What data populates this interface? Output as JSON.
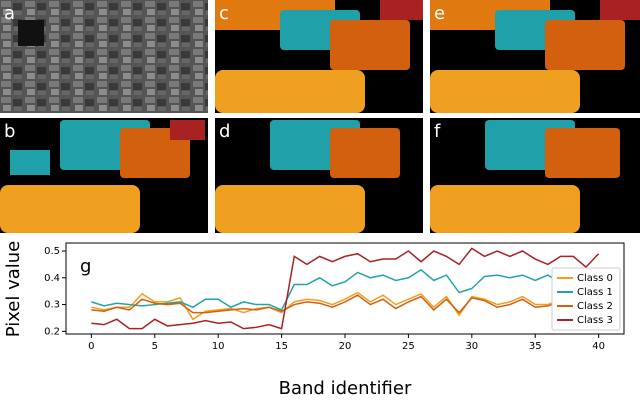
{
  "panels": [
    "a",
    "b",
    "c",
    "d",
    "e",
    "f"
  ],
  "chart_data": {
    "type": "line",
    "panel_label": "g",
    "xlabel": "Band identifier",
    "ylabel": "Pixel value",
    "x": [
      0,
      1,
      2,
      3,
      4,
      5,
      6,
      7,
      8,
      9,
      10,
      11,
      12,
      13,
      14,
      15,
      16,
      17,
      18,
      19,
      20,
      21,
      22,
      23,
      24,
      25,
      26,
      27,
      28,
      29,
      30,
      31,
      32,
      33,
      34,
      35,
      36,
      37,
      38,
      39,
      40
    ],
    "xlim": [
      -2,
      42
    ],
    "xticks": [
      0,
      5,
      10,
      15,
      20,
      25,
      30,
      35,
      40
    ],
    "ylim": [
      0.19,
      0.53
    ],
    "yticks": [
      0.2,
      0.3,
      0.4,
      0.5
    ],
    "legend": "lower right",
    "series": [
      {
        "name": "Class 0",
        "color": "#f0a020",
        "values": [
          0.29,
          0.28,
          0.29,
          0.29,
          0.34,
          0.31,
          0.31,
          0.325,
          0.245,
          0.275,
          0.28,
          0.285,
          0.27,
          0.285,
          0.29,
          0.27,
          0.31,
          0.32,
          0.315,
          0.3,
          0.32,
          0.345,
          0.31,
          0.335,
          0.3,
          0.32,
          0.34,
          0.29,
          0.33,
          0.26,
          0.33,
          0.32,
          0.3,
          0.31,
          0.33,
          0.3,
          0.3,
          0.32,
          0.31,
          0.3,
          0.32
        ]
      },
      {
        "name": "Class 1",
        "color": "#22a3a8",
        "values": [
          0.31,
          0.295,
          0.305,
          0.3,
          0.295,
          0.3,
          0.305,
          0.31,
          0.29,
          0.32,
          0.32,
          0.29,
          0.31,
          0.3,
          0.3,
          0.28,
          0.375,
          0.375,
          0.4,
          0.37,
          0.385,
          0.42,
          0.4,
          0.41,
          0.39,
          0.4,
          0.43,
          0.39,
          0.41,
          0.345,
          0.36,
          0.405,
          0.41,
          0.4,
          0.41,
          0.39,
          0.41,
          0.38,
          0.39,
          0.38,
          0.37
        ]
      },
      {
        "name": "Class 2",
        "color": "#d2600e",
        "values": [
          0.28,
          0.275,
          0.29,
          0.28,
          0.32,
          0.305,
          0.3,
          0.305,
          0.27,
          0.27,
          0.275,
          0.28,
          0.285,
          0.28,
          0.29,
          0.275,
          0.3,
          0.31,
          0.305,
          0.29,
          0.31,
          0.335,
          0.3,
          0.32,
          0.285,
          0.31,
          0.33,
          0.28,
          0.32,
          0.27,
          0.325,
          0.315,
          0.29,
          0.3,
          0.32,
          0.29,
          0.295,
          0.31,
          0.3,
          0.29,
          0.315
        ]
      },
      {
        "name": "Class 3",
        "color": "#a82222",
        "values": [
          0.23,
          0.225,
          0.245,
          0.21,
          0.21,
          0.245,
          0.22,
          0.225,
          0.23,
          0.24,
          0.23,
          0.235,
          0.21,
          0.215,
          0.225,
          0.21,
          0.48,
          0.45,
          0.48,
          0.46,
          0.48,
          0.49,
          0.46,
          0.47,
          0.47,
          0.5,
          0.46,
          0.5,
          0.48,
          0.45,
          0.51,
          0.48,
          0.5,
          0.48,
          0.5,
          0.47,
          0.45,
          0.48,
          0.48,
          0.44,
          0.49
        ]
      }
    ]
  }
}
